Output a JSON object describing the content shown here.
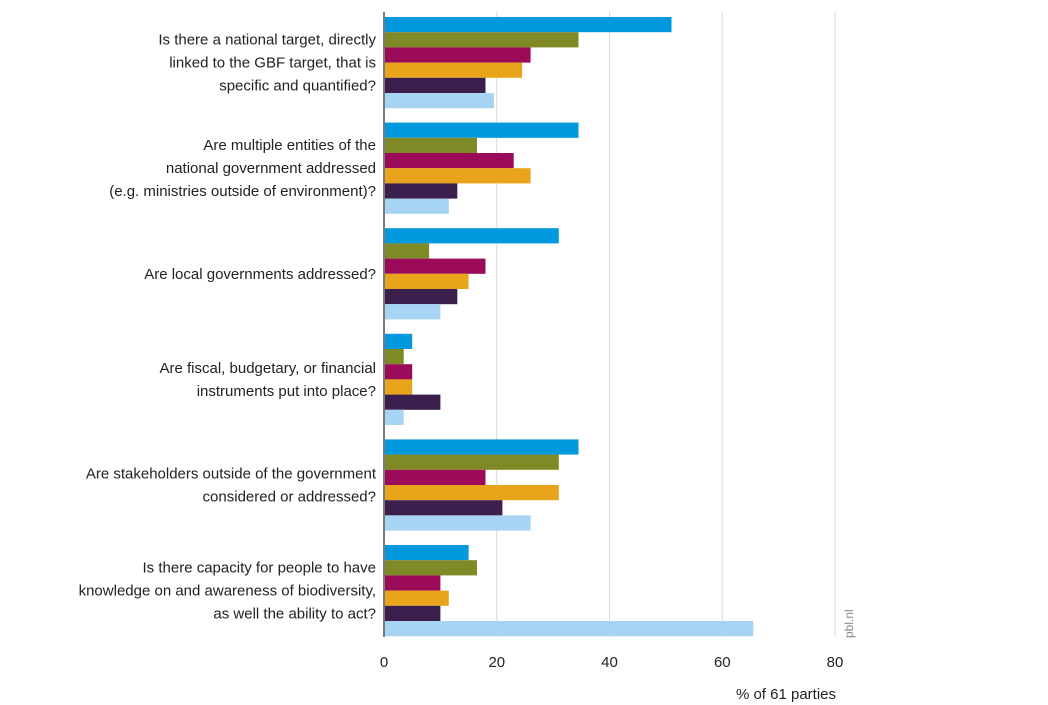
{
  "chart_data": {
    "type": "bar",
    "orientation": "horizontal",
    "categories": [
      [
        "Is there a national target, directly",
        "linked to the GBF target, that is",
        "specific and quantified?"
      ],
      [
        "Are multiple entities of the",
        "national government addressed",
        "(e.g. ministries outside of environment)?"
      ],
      [
        "Are local governments addressed?"
      ],
      [
        "Are fiscal, budgetary, or financial",
        "instruments put into place?"
      ],
      [
        "Are stakeholders outside of the government",
        "considered or addressed?"
      ],
      [
        "Is there capacity for people to have",
        "knowledge on and awareness of biodiversity,",
        "as well the ability to act?"
      ]
    ],
    "series": [
      {
        "color": "#0099dd",
        "values": [
          51,
          34.5,
          31,
          5,
          34.5,
          15
        ]
      },
      {
        "color": "#7f8a27",
        "values": [
          34.5,
          16.5,
          8,
          3.5,
          31,
          16.5
        ]
      },
      {
        "color": "#9c0b5a",
        "values": [
          26,
          23,
          18,
          5,
          18,
          10
        ]
      },
      {
        "color": "#e8a41a",
        "values": [
          24.5,
          26,
          15,
          5,
          31,
          11.5
        ]
      },
      {
        "color": "#3b1f4d",
        "values": [
          18,
          13,
          13,
          10,
          21,
          10
        ]
      },
      {
        "color": "#a8d4f4",
        "values": [
          19.5,
          11.5,
          10,
          3.5,
          26,
          65.5
        ]
      }
    ],
    "xlabel": "% of 61 parties",
    "xlim": [
      0,
      80
    ],
    "xticks": [
      "0",
      "20",
      "40",
      "60",
      "80"
    ],
    "grid": "vertical",
    "source": "pbl.nl"
  }
}
